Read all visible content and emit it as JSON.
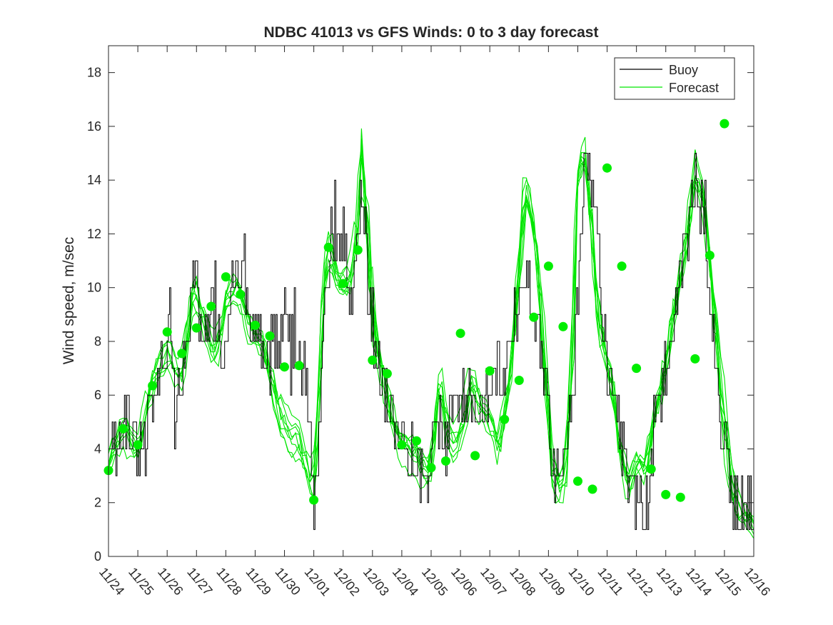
{
  "chart_data": {
    "type": "line",
    "title": "NDBC 41013 vs GFS Winds: 0 to 3 day forecast",
    "xlabel": "",
    "ylabel": "Wind speed, m/sec",
    "xlim": [
      0,
      22
    ],
    "ylim": [
      0,
      19
    ],
    "yticks": [
      0,
      2,
      4,
      6,
      8,
      10,
      12,
      14,
      16,
      18
    ],
    "xtick_labels": [
      "11/24",
      "11/25",
      "11/26",
      "11/27",
      "11/28",
      "11/29",
      "11/30",
      "12/01",
      "12/02",
      "12/03",
      "12/04",
      "12/05",
      "12/06",
      "12/07",
      "12/08",
      "12/09",
      "12/10",
      "12/11",
      "12/12",
      "12/13",
      "12/14",
      "12/15",
      "12/16"
    ],
    "legend": {
      "location": "top-right",
      "entries": [
        "Buoy",
        "Forecast"
      ]
    },
    "colors": {
      "buoy": "#000000",
      "forecast": "#00e600",
      "markers": "#00ee00"
    },
    "buoy_profile": [
      [
        0,
        4.5
      ],
      [
        0.15,
        5
      ],
      [
        0.3,
        4
      ],
      [
        0.5,
        5.5
      ],
      [
        0.75,
        4.5
      ],
      [
        1.0,
        4
      ],
      [
        1.25,
        5
      ],
      [
        1.5,
        6
      ],
      [
        1.75,
        7
      ],
      [
        2.0,
        8
      ],
      [
        2.1,
        10
      ],
      [
        2.25,
        5
      ],
      [
        2.4,
        6
      ],
      [
        2.5,
        7
      ],
      [
        2.75,
        9
      ],
      [
        2.95,
        11
      ],
      [
        3.1,
        9.5
      ],
      [
        3.25,
        8
      ],
      [
        3.5,
        9
      ],
      [
        3.75,
        8.5
      ],
      [
        3.9,
        6.5
      ],
      [
        4.0,
        8
      ],
      [
        4.2,
        10
      ],
      [
        4.4,
        10.5
      ],
      [
        4.6,
        11
      ],
      [
        4.8,
        8.5
      ],
      [
        5.0,
        9
      ],
      [
        5.25,
        7.5
      ],
      [
        5.5,
        8.5
      ],
      [
        5.75,
        7.5
      ],
      [
        6.0,
        9
      ],
      [
        6.25,
        8
      ],
      [
        6.5,
        7.5
      ],
      [
        6.75,
        6.5
      ],
      [
        6.9,
        4
      ],
      [
        7.0,
        2.5
      ],
      [
        7.15,
        3
      ],
      [
        7.35,
        10
      ],
      [
        7.5,
        11.5
      ],
      [
        7.75,
        11
      ],
      [
        8.0,
        11.5
      ],
      [
        8.2,
        9.5
      ],
      [
        8.45,
        11
      ],
      [
        8.65,
        14
      ],
      [
        8.75,
        12
      ],
      [
        8.9,
        9
      ],
      [
        9.1,
        8
      ],
      [
        9.3,
        6.5
      ],
      [
        9.5,
        5.5
      ],
      [
        9.7,
        5
      ],
      [
        10.0,
        4.5
      ],
      [
        10.25,
        4
      ],
      [
        10.5,
        3.5
      ],
      [
        10.75,
        3
      ],
      [
        11.0,
        4
      ],
      [
        11.25,
        5
      ],
      [
        11.5,
        4
      ],
      [
        11.75,
        6
      ],
      [
        12.0,
        5.5
      ],
      [
        12.25,
        6.5
      ],
      [
        12.5,
        5
      ],
      [
        12.75,
        6
      ],
      [
        13.0,
        5.5
      ],
      [
        13.25,
        7
      ],
      [
        13.5,
        6.5
      ],
      [
        13.75,
        8.5
      ],
      [
        14.0,
        9.5
      ],
      [
        14.25,
        10.5
      ],
      [
        14.5,
        9
      ],
      [
        14.75,
        7
      ],
      [
        15.0,
        5
      ],
      [
        15.15,
        3
      ],
      [
        15.35,
        3.5
      ],
      [
        15.5,
        3
      ],
      [
        15.7,
        4.5
      ],
      [
        15.85,
        6
      ],
      [
        16.0,
        10
      ],
      [
        16.2,
        14
      ],
      [
        16.4,
        14.5
      ],
      [
        16.6,
        13
      ],
      [
        16.8,
        9
      ],
      [
        17.0,
        7.5
      ],
      [
        17.2,
        6.5
      ],
      [
        17.4,
        5
      ],
      [
        17.6,
        3
      ],
      [
        17.8,
        2
      ],
      [
        18.0,
        2.5
      ],
      [
        18.2,
        1
      ],
      [
        18.4,
        2.5
      ],
      [
        18.6,
        5
      ],
      [
        18.8,
        6
      ],
      [
        19.0,
        7
      ],
      [
        19.25,
        9
      ],
      [
        19.5,
        11
      ],
      [
        19.75,
        12
      ],
      [
        20.0,
        14
      ],
      [
        20.25,
        13
      ],
      [
        20.5,
        10
      ],
      [
        20.75,
        7
      ],
      [
        21.0,
        4
      ],
      [
        21.25,
        2.5
      ],
      [
        21.5,
        1.8
      ],
      [
        22.0,
        1.5
      ]
    ],
    "forecast_profile": [
      [
        0,
        3.5
      ],
      [
        0.5,
        5
      ],
      [
        1.0,
        4
      ],
      [
        1.5,
        6.5
      ],
      [
        2.0,
        7.5
      ],
      [
        2.5,
        6.5
      ],
      [
        2.9,
        10
      ],
      [
        3.5,
        8
      ],
      [
        3.7,
        7.5
      ],
      [
        4.0,
        9.5
      ],
      [
        4.4,
        10
      ],
      [
        4.8,
        8.5
      ],
      [
        5.2,
        8
      ],
      [
        5.5,
        7
      ],
      [
        6.0,
        5
      ],
      [
        6.5,
        4.5
      ],
      [
        7.0,
        2.5
      ],
      [
        7.3,
        9
      ],
      [
        7.5,
        11.5
      ],
      [
        7.8,
        10
      ],
      [
        8.2,
        10
      ],
      [
        8.5,
        12
      ],
      [
        8.65,
        16
      ],
      [
        8.8,
        13
      ],
      [
        9.0,
        9
      ],
      [
        9.5,
        6
      ],
      [
        9.8,
        4.5
      ],
      [
        10.1,
        4
      ],
      [
        10.5,
        3.8
      ],
      [
        10.8,
        3
      ],
      [
        11.0,
        3.5
      ],
      [
        11.3,
        6.5
      ],
      [
        11.5,
        5
      ],
      [
        11.8,
        4
      ],
      [
        12.1,
        5
      ],
      [
        12.4,
        6.5
      ],
      [
        12.6,
        5.5
      ],
      [
        13.0,
        5
      ],
      [
        13.3,
        4
      ],
      [
        13.6,
        6
      ],
      [
        13.9,
        9.5
      ],
      [
        14.2,
        14
      ],
      [
        14.4,
        13
      ],
      [
        14.7,
        10
      ],
      [
        14.9,
        7
      ],
      [
        15.1,
        3.5
      ],
      [
        15.3,
        2.5
      ],
      [
        15.6,
        3
      ],
      [
        15.85,
        8
      ],
      [
        16.0,
        14
      ],
      [
        16.2,
        15
      ],
      [
        16.4,
        13
      ],
      [
        16.6,
        10
      ],
      [
        16.8,
        8
      ],
      [
        17.1,
        6.5
      ],
      [
        17.4,
        4
      ],
      [
        17.7,
        2.5
      ],
      [
        18.0,
        3.5
      ],
      [
        18.3,
        3
      ],
      [
        18.6,
        5
      ],
      [
        18.9,
        6.5
      ],
      [
        19.2,
        8.5
      ],
      [
        19.5,
        10.5
      ],
      [
        19.8,
        12.5
      ],
      [
        20.0,
        14.5
      ],
      [
        20.3,
        13.5
      ],
      [
        20.6,
        10
      ],
      [
        20.9,
        6
      ],
      [
        21.2,
        3
      ],
      [
        21.5,
        1.8
      ],
      [
        22.0,
        1.3
      ]
    ],
    "markers": [
      [
        0,
        3.2
      ],
      [
        0.5,
        4.75
      ],
      [
        1.0,
        4.15
      ],
      [
        1.5,
        6.35
      ],
      [
        2.0,
        8.35
      ],
      [
        2.5,
        7.55
      ],
      [
        3.0,
        8.5
      ],
      [
        3.5,
        9.3
      ],
      [
        4.0,
        10.4
      ],
      [
        4.5,
        9.75
      ],
      [
        5.0,
        8.6
      ],
      [
        5.5,
        8.2
      ],
      [
        6.0,
        7.05
      ],
      [
        6.5,
        7.1
      ],
      [
        7.0,
        2.1
      ],
      [
        7.5,
        11.5
      ],
      [
        8.0,
        10.15
      ],
      [
        8.5,
        11.4
      ],
      [
        9.0,
        7.3
      ],
      [
        9.5,
        6.8
      ],
      [
        10.0,
        4.15
      ],
      [
        10.5,
        4.3
      ],
      [
        11.0,
        3.3
      ],
      [
        11.5,
        3.55
      ],
      [
        12.0,
        8.3
      ],
      [
        12.5,
        3.75
      ],
      [
        13.0,
        6.9
      ],
      [
        13.5,
        5.1
      ],
      [
        14.0,
        6.55
      ],
      [
        14.5,
        8.9
      ],
      [
        15.0,
        10.8
      ],
      [
        15.5,
        8.55
      ],
      [
        16.0,
        2.8
      ],
      [
        16.5,
        2.5
      ],
      [
        17.0,
        14.45
      ],
      [
        17.5,
        10.8
      ],
      [
        18.0,
        7.0
      ],
      [
        18.5,
        3.25
      ],
      [
        19.0,
        2.3
      ],
      [
        19.5,
        2.2
      ],
      [
        20.0,
        7.35
      ],
      [
        20.5,
        11.2
      ],
      [
        21.0,
        16.1
      ]
    ]
  }
}
